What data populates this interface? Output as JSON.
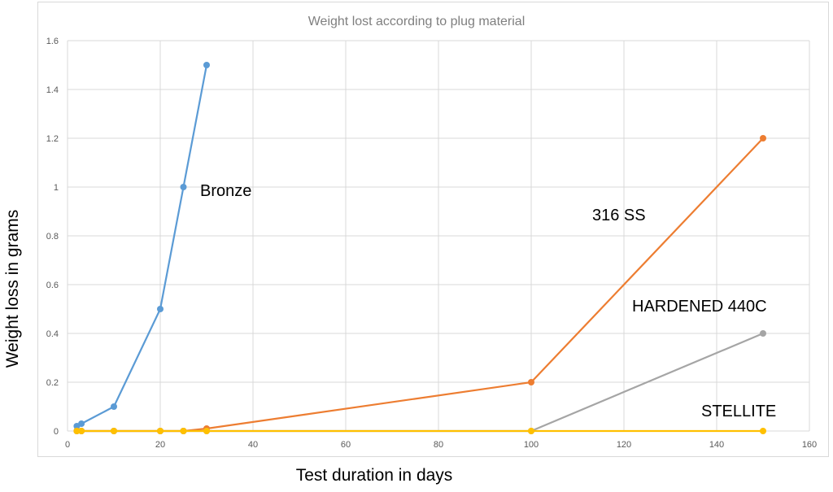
{
  "chart_data": {
    "type": "line",
    "title": "Weight lost  according to plug material",
    "xlabel": "Test duration in days",
    "ylabel": "Weight loss in grams",
    "xlim": [
      0,
      160
    ],
    "ylim": [
      0,
      1.6
    ],
    "xticks": [
      0,
      20,
      40,
      60,
      80,
      100,
      120,
      140,
      160
    ],
    "yticks": [
      0,
      0.2,
      0.4,
      0.6,
      0.8,
      1,
      1.2,
      1.4,
      1.6
    ],
    "ytick_labels": [
      "0",
      "0.2",
      "0.4",
      "0.6",
      "0.8",
      "1",
      "1.2",
      "1.4",
      "1.6"
    ],
    "grid": true,
    "series": [
      {
        "name": "Bronze",
        "color": "#5b9bd5",
        "x": [
          2,
          3,
          10,
          20,
          25,
          30
        ],
        "y": [
          0.02,
          0.03,
          0.1,
          0.5,
          1.0,
          1.5
        ]
      },
      {
        "name": "316 SS",
        "color": "#ed7d31",
        "x": [
          2,
          3,
          10,
          20,
          25,
          30,
          100,
          150
        ],
        "y": [
          0,
          0,
          0,
          0,
          0,
          0.01,
          0.2,
          1.2
        ]
      },
      {
        "name": "HARDENED 440C",
        "color": "#a5a5a5",
        "x": [
          2,
          3,
          10,
          20,
          25,
          30,
          100,
          150
        ],
        "y": [
          0,
          0,
          0,
          0,
          0,
          0,
          0,
          0.4
        ]
      },
      {
        "name": "STELLITE",
        "color": "#ffc000",
        "x": [
          2,
          3,
          10,
          20,
          25,
          30,
          100,
          150
        ],
        "y": [
          0,
          0,
          0,
          0,
          0,
          0,
          0,
          0
        ]
      }
    ]
  }
}
